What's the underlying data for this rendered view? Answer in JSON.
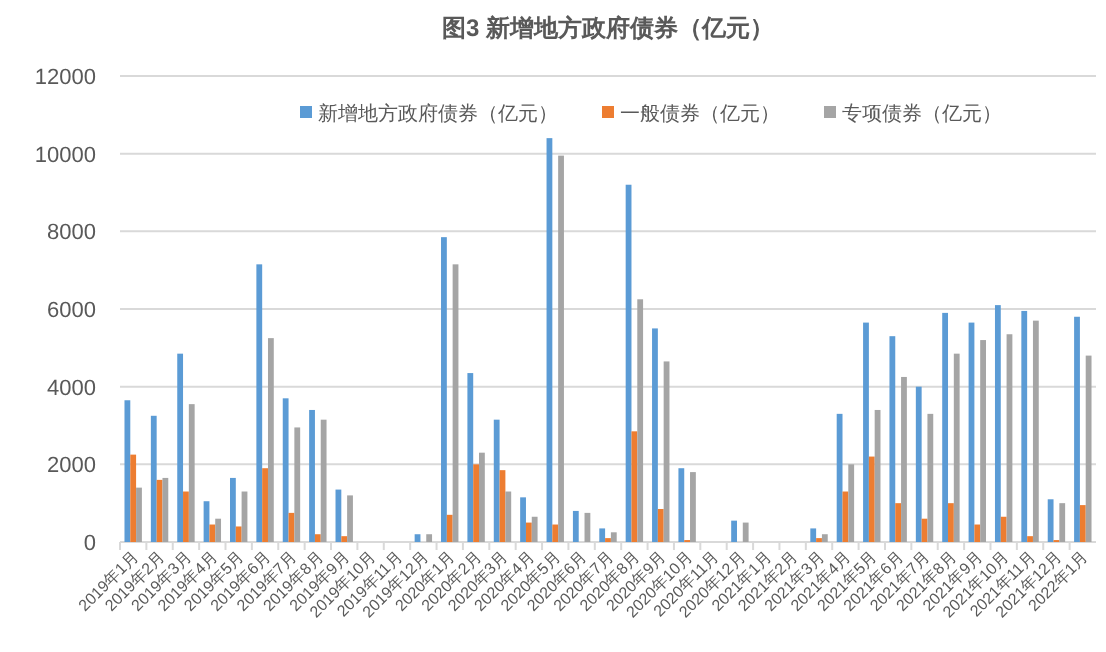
{
  "chart_data": {
    "type": "bar",
    "title": "图3 新增地方政府债券（亿元）",
    "categories": [
      "2019年1月",
      "2019年2月",
      "2019年3月",
      "2019年4月",
      "2019年5月",
      "2019年6月",
      "2019年7月",
      "2019年8月",
      "2019年9月",
      "2019年10月",
      "2019年11月",
      "2019年12月",
      "2020年1月",
      "2020年2月",
      "2020年3月",
      "2020年4月",
      "2020年5月",
      "2020年6月",
      "2020年7月",
      "2020年8月",
      "2020年9月",
      "2020年10月",
      "2020年11月",
      "2020年12月",
      "2021年1月",
      "2021年2月",
      "2021年3月",
      "2021年4月",
      "2021年5月",
      "2021年6月",
      "2021年7月",
      "2021年8月",
      "2021年9月",
      "2021年10月",
      "2021年11月",
      "2021年12月",
      "2022年1月"
    ],
    "series": [
      {
        "name": "新增地方政府债券（亿元）",
        "color": "#5b9bd5",
        "values": [
          3650,
          3250,
          4850,
          1050,
          1650,
          7150,
          3700,
          3400,
          1350,
          0,
          0,
          200,
          7850,
          4350,
          3150,
          1150,
          10400,
          800,
          350,
          9200,
          5500,
          1900,
          0,
          550,
          0,
          0,
          350,
          3300,
          5650,
          5300,
          4000,
          5900,
          5650,
          6100,
          5950,
          1100,
          5800
        ]
      },
      {
        "name": "一般债券（亿元）",
        "color": "#ed7d31",
        "values": [
          2250,
          1600,
          1300,
          450,
          400,
          1900,
          750,
          200,
          150,
          0,
          0,
          0,
          700,
          2000,
          1850,
          500,
          450,
          0,
          100,
          2850,
          850,
          50,
          0,
          0,
          0,
          0,
          100,
          1300,
          2200,
          1000,
          600,
          1000,
          450,
          650,
          150,
          50,
          950
        ]
      },
      {
        "name": "专项债券（亿元）",
        "color": "#a5a5a5",
        "values": [
          1400,
          1650,
          3550,
          600,
          1300,
          5250,
          2950,
          3150,
          1200,
          0,
          0,
          200,
          7150,
          2300,
          1300,
          650,
          9950,
          750,
          250,
          6250,
          4650,
          1800,
          0,
          500,
          0,
          0,
          200,
          2000,
          3400,
          4250,
          3300,
          4850,
          5200,
          5350,
          5700,
          1000,
          4800
        ]
      }
    ],
    "ylim": [
      0,
      12000
    ],
    "yticks": [
      0,
      2000,
      4000,
      6000,
      8000,
      10000,
      12000
    ],
    "grid": "y",
    "legend": "top"
  }
}
